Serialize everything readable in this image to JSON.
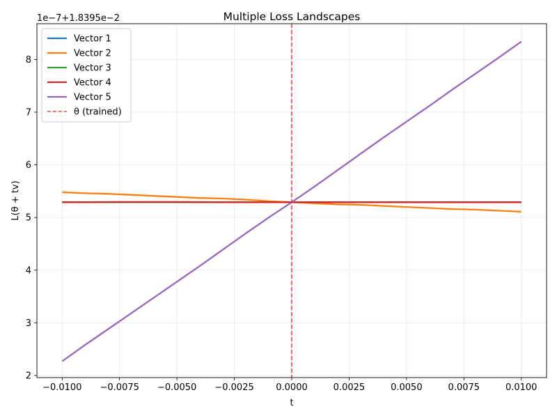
{
  "chart_data": {
    "type": "line",
    "title": "Multiple Loss Landscapes",
    "xlabel": "t",
    "ylabel": "L(θ + tv)",
    "y_offset_label": "1e−7+1.8395e−2",
    "xlim": [
      -0.0111,
      0.0111
    ],
    "ylim": [
      1.96,
      8.68
    ],
    "x_ticks": [
      -0.01,
      -0.0075,
      -0.005,
      -0.0025,
      0.0,
      0.0025,
      0.005,
      0.0075,
      0.01
    ],
    "x_tick_labels": [
      "−0.0100",
      "−0.0075",
      "−0.0050",
      "−0.0025",
      "0.0000",
      "0.0025",
      "0.0050",
      "0.0075",
      "0.0100"
    ],
    "y_ticks": [
      2,
      3,
      4,
      5,
      6,
      7,
      8
    ],
    "y_tick_labels": [
      "2",
      "3",
      "4",
      "5",
      "6",
      "7",
      "8"
    ],
    "grid": true,
    "legend_position": "top-left",
    "series": [
      {
        "name": "Vector 1",
        "color": "#1f77b4",
        "style": "solid",
        "x": [
          -0.01,
          -0.0075,
          -0.005,
          -0.0025,
          0.0,
          0.0025,
          0.005,
          0.0075,
          0.01
        ],
        "y": [
          5.29,
          5.29,
          5.29,
          5.29,
          5.29,
          5.29,
          5.29,
          5.29,
          5.29
        ]
      },
      {
        "name": "Vector 2",
        "color": "#ff7f0e",
        "style": "solid",
        "x": [
          -0.01,
          -0.009,
          -0.008,
          -0.007,
          -0.006,
          -0.005,
          -0.004,
          -0.003,
          -0.002,
          -0.001,
          0.0,
          0.001,
          0.002,
          0.003,
          0.004,
          0.005,
          0.006,
          0.007,
          0.008,
          0.009,
          0.01
        ],
        "y": [
          5.48,
          5.46,
          5.45,
          5.43,
          5.41,
          5.39,
          5.37,
          5.36,
          5.34,
          5.31,
          5.29,
          5.27,
          5.25,
          5.24,
          5.22,
          5.2,
          5.18,
          5.16,
          5.15,
          5.13,
          5.11
        ]
      },
      {
        "name": "Vector 3",
        "color": "#2ca02c",
        "style": "solid",
        "x": [
          -0.01,
          -0.0075,
          -0.005,
          -0.0025,
          0.0,
          0.0025,
          0.005,
          0.0075,
          0.01
        ],
        "y": [
          5.29,
          5.29,
          5.29,
          5.29,
          5.29,
          5.29,
          5.29,
          5.29,
          5.29
        ]
      },
      {
        "name": "Vector 4",
        "color": "#d62728",
        "style": "solid",
        "x": [
          -0.01,
          -0.0075,
          -0.005,
          -0.0025,
          0.0,
          0.0025,
          0.005,
          0.0075,
          0.01
        ],
        "y": [
          5.29,
          5.295,
          5.295,
          5.29,
          5.29,
          5.29,
          5.29,
          5.29,
          5.29
        ]
      },
      {
        "name": "Vector 5",
        "color": "#9467bd",
        "style": "solid",
        "x": [
          -0.01,
          -0.009,
          -0.008,
          -0.007,
          -0.006,
          -0.005,
          -0.004,
          -0.003,
          -0.002,
          -0.001,
          0.0,
          0.001,
          0.002,
          0.003,
          0.004,
          0.005,
          0.006,
          0.007,
          0.008,
          0.009,
          0.01
        ],
        "y": [
          2.27,
          2.58,
          2.88,
          3.18,
          3.48,
          3.78,
          4.08,
          4.39,
          4.7,
          5.0,
          5.29,
          5.59,
          5.9,
          6.21,
          6.52,
          6.82,
          7.12,
          7.43,
          7.73,
          8.03,
          8.34
        ]
      },
      {
        "name": "θ (trained)",
        "color": "#ff0000",
        "style": "dashed",
        "vertical_x": 0.0
      }
    ]
  }
}
